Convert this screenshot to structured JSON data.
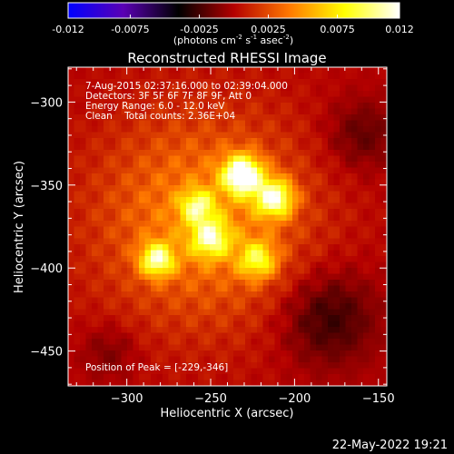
{
  "colorbar": {
    "tick_labels": [
      "-0.012",
      "-0.0075",
      "-0.0025",
      "0.0025",
      "0.0075",
      "0.012"
    ],
    "unit_main": "(photons cm",
    "unit_sup1": "-2",
    "unit_mid1": " s",
    "unit_sup2": "-1",
    "unit_mid2": " asec",
    "unit_sup3": "-2",
    "unit_end": ")",
    "range": [
      -0.012,
      0.012
    ]
  },
  "title": "Reconstructed RHESSI Image",
  "info": {
    "time": "7-Aug-2015 02:37:16.000 to 02:39:04.000",
    "detectors": "Detectors: 3F 5F 6F 7F 8F 9F, Att 0",
    "energy": "Energy Range: 6.0 - 12.0 keV",
    "clean": "Clean    Total counts: 2.36E+04",
    "peak": "Position of Peak = [-229,-346]"
  },
  "footer_date": "22-May-2022 19:21",
  "colors": {
    "background": "#000000",
    "accent_peak": "#ffffc8",
    "cmap": [
      "#0000ff",
      "#5a00b4",
      "#000000",
      "#b40000",
      "#ff7800",
      "#ffff00",
      "#ffffff"
    ]
  },
  "chart_data": {
    "type": "heatmap",
    "title": "Reconstructed RHESSI Image",
    "xlabel": "Heliocentric X (arcsec)",
    "ylabel": "Heliocentric Y (arcsec)",
    "xlim": [
      -335,
      -145
    ],
    "ylim": [
      -471,
      -279
    ],
    "x_ticks": [
      -300,
      -250,
      -200,
      -150
    ],
    "y_ticks": [
      -300,
      -350,
      -400,
      -450
    ],
    "x_tick_labels": [
      "−300",
      "−250",
      "−200",
      "−150"
    ],
    "y_tick_labels": [
      "−300",
      "−350",
      "−400",
      "−450"
    ],
    "peak": [
      -229,
      -346
    ],
    "sources": [
      {
        "x": -231,
        "y": -344,
        "peak": 0.012,
        "sigma": 8
      },
      {
        "x": -212,
        "y": -358,
        "peak": 0.0095,
        "sigma": 8
      },
      {
        "x": -282,
        "y": -395,
        "peak": 0.0085,
        "sigma": 7
      },
      {
        "x": -250,
        "y": -382,
        "peak": 0.0075,
        "sigma": 8
      },
      {
        "x": -258,
        "y": -363,
        "peak": 0.0065,
        "sigma": 7
      },
      {
        "x": -222,
        "y": -395,
        "peak": 0.0065,
        "sigma": 8
      }
    ],
    "background": {
      "x": -255,
      "y": -370,
      "peak": 0.0045,
      "sigma": 45
    },
    "negative_regions": [
      {
        "x": -180,
        "y": -430,
        "peak": -0.003,
        "sigma": 20
      },
      {
        "x": -160,
        "y": -320,
        "peak": -0.002,
        "sigma": 15
      },
      {
        "x": -310,
        "y": -450,
        "peak": -0.0015,
        "sigma": 12
      }
    ]
  }
}
